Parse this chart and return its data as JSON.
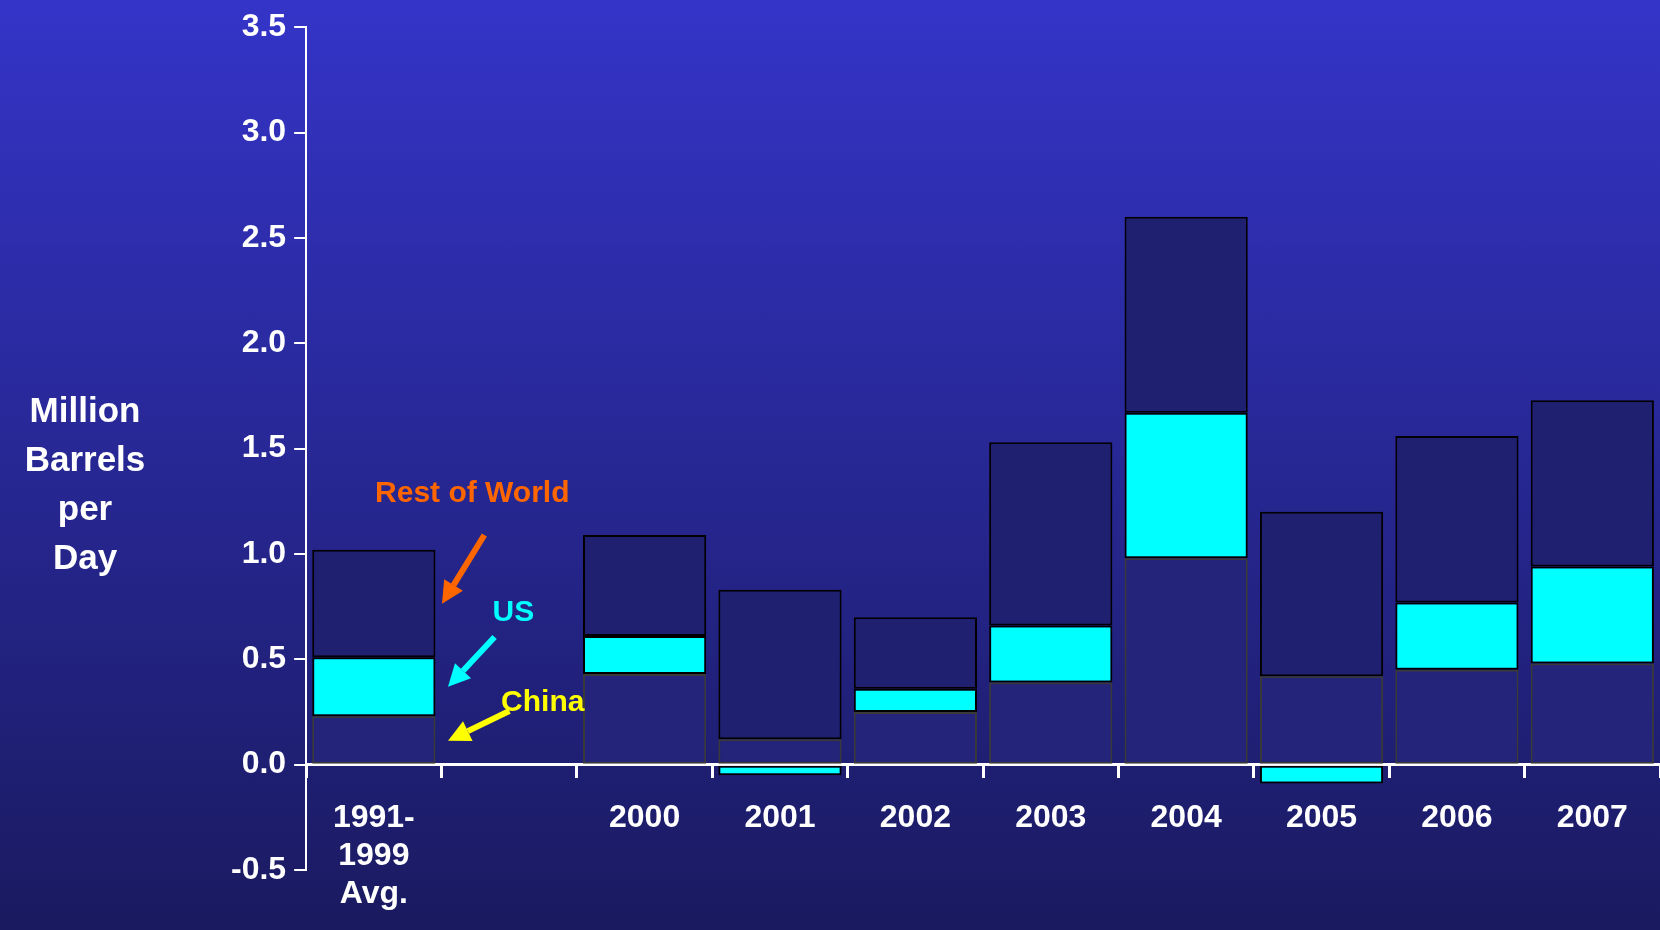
{
  "chart_data": {
    "type": "bar",
    "stacked": true,
    "ylabel": "Million Barrels per Day",
    "categories": [
      "1991- 1999 Avg.",
      null,
      "2000",
      "2001",
      "2002",
      "2003",
      "2004",
      "2005",
      "2006",
      "2007"
    ],
    "series": [
      {
        "name": "China",
        "color": "#23247a",
        "values": [
          0.23,
          null,
          0.43,
          0.12,
          0.25,
          0.39,
          0.98,
          0.42,
          0.45,
          0.48
        ]
      },
      {
        "name": "US",
        "color": "#00ffff",
        "values": [
          0.28,
          null,
          0.18,
          -0.05,
          0.11,
          0.27,
          0.69,
          -0.09,
          0.32,
          0.46
        ]
      },
      {
        "name": "Rest of World",
        "color": "#202070",
        "values": [
          0.51,
          null,
          0.48,
          0.71,
          0.34,
          0.87,
          0.93,
          0.78,
          0.79,
          0.79
        ]
      }
    ],
    "ylim": [
      -0.5,
      3.5
    ],
    "yticks": [
      {
        "value": -0.5,
        "label": "-0.5"
      },
      {
        "value": 0,
        "label": "0.0"
      },
      0.5,
      {
        "value": 1,
        "label": "1.0"
      },
      1.5,
      {
        "value": 2,
        "label": "2.0"
      },
      2.5,
      {
        "value": 3,
        "label": "3.0"
      },
      3.5
    ],
    "grid": false,
    "legend": false
  }
}
